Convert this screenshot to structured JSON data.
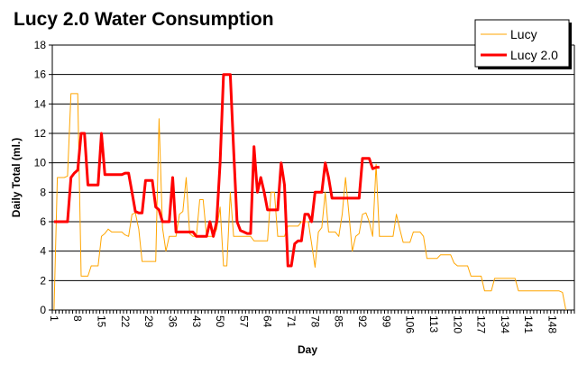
{
  "chart_data": {
    "type": "line",
    "title": "Lucy 2.0 Water Consumption",
    "xlabel": "Day",
    "ylabel": "Daily Total (ml.)",
    "ylim": [
      0,
      18
    ],
    "yticks": [
      "0",
      "2",
      "4",
      "6",
      "8",
      "10",
      "12",
      "14",
      "16",
      "18"
    ],
    "xticks": [
      "1",
      "8",
      "15",
      "22",
      "29",
      "36",
      "43",
      "50",
      "57",
      "64",
      "71",
      "78",
      "85",
      "92",
      "99",
      "106",
      "113",
      "120",
      "127",
      "134",
      "141",
      "148"
    ],
    "x_start_day": 1,
    "grid": "horizontal",
    "legend_placement": "top-right",
    "series": [
      {
        "name": "Lucy",
        "color": "#FFA500",
        "values": [
          0,
          9.0,
          9.0,
          9.0,
          9.1,
          14.7,
          14.7,
          14.7,
          2.3,
          2.3,
          2.3,
          3.0,
          3.0,
          3.0,
          5.0,
          5.2,
          5.5,
          5.3,
          5.3,
          5.3,
          5.3,
          5.1,
          5.0,
          6.5,
          6.6,
          5.5,
          3.3,
          3.3,
          3.3,
          3.3,
          3.3,
          13.0,
          5.6,
          4.0,
          5.0,
          5.0,
          5.0,
          6.5,
          6.7,
          9.0,
          5.2,
          5.0,
          5.0,
          7.5,
          7.5,
          5.0,
          5.0,
          5.0,
          5.5,
          7.0,
          3.0,
          3.0,
          8.0,
          5.0,
          5.0,
          5.0,
          5.0,
          5.0,
          5.0,
          4.7,
          4.7,
          4.7,
          4.7,
          4.7,
          8.0,
          8.0,
          5.0,
          5.0,
          5.0,
          5.7,
          5.7,
          5.7,
          5.7,
          6.0,
          6.0,
          6.0,
          4.5,
          2.9,
          5.3,
          5.6,
          8.0,
          5.3,
          5.3,
          5.3,
          5.0,
          6.5,
          9.0,
          6.5,
          4.0,
          5.0,
          5.2,
          6.5,
          6.6,
          6.0,
          5.0,
          9.9,
          5.0,
          5.0,
          5.0,
          5.0,
          5.0,
          6.5,
          5.5,
          4.6,
          4.6,
          4.6,
          5.3,
          5.3,
          5.3,
          5.0,
          3.5,
          3.5,
          3.5,
          3.5,
          3.75,
          3.75,
          3.75,
          3.75,
          3.2,
          3.0,
          3.0,
          3.0,
          3.0,
          2.3,
          2.3,
          2.3,
          2.3,
          1.3,
          1.3,
          1.3,
          2.15,
          2.15,
          2.15,
          2.15,
          2.15,
          2.15,
          2.15,
          1.3,
          1.3,
          1.3,
          1.3,
          1.3,
          1.3,
          1.3,
          1.3,
          1.3,
          1.3,
          1.3,
          1.3,
          1.3,
          1.2,
          0
        ]
      },
      {
        "name": "Lucy 2.0",
        "color": "#FF0000",
        "values": [
          6.0,
          6.0,
          6.0,
          6.0,
          6.0,
          9.0,
          9.3,
          9.5,
          12.0,
          12.0,
          8.5,
          8.5,
          8.5,
          8.5,
          12.0,
          9.2,
          9.2,
          9.2,
          9.2,
          9.2,
          9.2,
          9.3,
          9.3,
          8.0,
          6.7,
          6.6,
          6.6,
          8.8,
          8.8,
          8.8,
          7.0,
          6.8,
          6.0,
          6.0,
          6.0,
          9.0,
          5.3,
          5.3,
          5.3,
          5.3,
          5.3,
          5.3,
          5.0,
          5.0,
          5.0,
          5.0,
          6.0,
          5.0,
          6.0,
          10.0,
          16.0,
          16.0,
          16.0,
          10.9,
          6.0,
          5.4,
          5.3,
          5.2,
          5.2,
          11.1,
          8.0,
          9.0,
          8.0,
          6.8,
          6.8,
          6.8,
          6.8,
          10.0,
          8.5,
          3.0,
          3.0,
          4.5,
          4.7,
          4.7,
          6.5,
          6.5,
          6.0,
          8.0,
          8.0,
          8.0,
          10.0,
          9.0,
          7.6,
          7.6,
          7.6,
          7.6,
          7.6,
          7.6,
          7.6,
          7.6,
          7.6,
          10.3,
          10.3,
          10.3,
          9.6,
          9.7,
          9.7
        ]
      }
    ]
  }
}
